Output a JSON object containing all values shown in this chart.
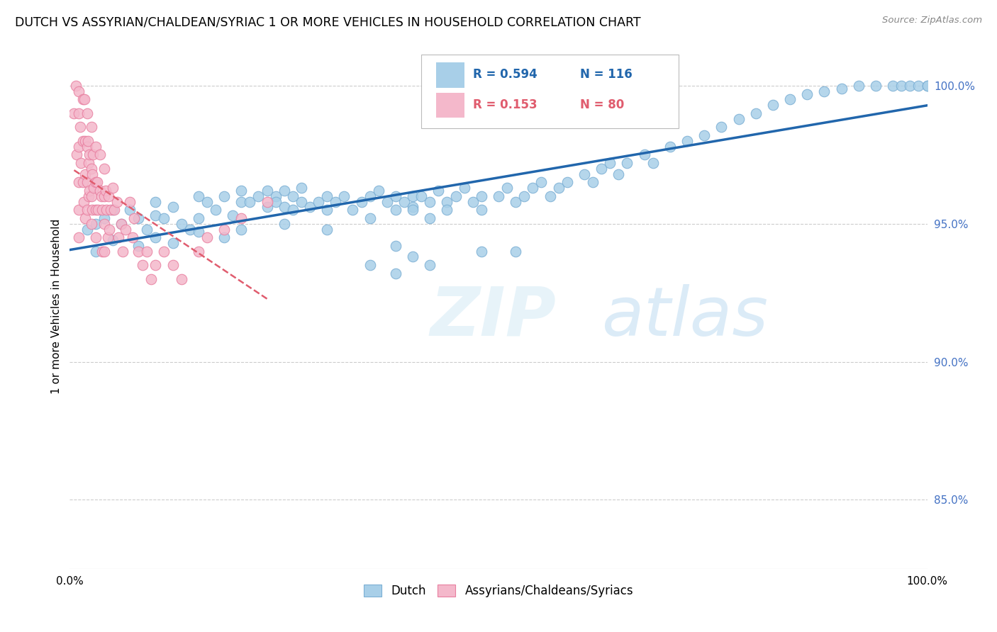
{
  "title": "DUTCH VS ASSYRIAN/CHALDEAN/SYRIAC 1 OR MORE VEHICLES IN HOUSEHOLD CORRELATION CHART",
  "source": "Source: ZipAtlas.com",
  "ylabel": "1 or more Vehicles in Household",
  "watermark": "ZIPatlas",
  "legend_labels": [
    "Dutch",
    "Assyrians/Chaldeans/Syriacs"
  ],
  "blue_color": "#a8cfe8",
  "pink_color": "#f4b8cb",
  "blue_edge_color": "#7bafd4",
  "pink_edge_color": "#e87fa0",
  "blue_line_color": "#2166ac",
  "pink_line_color": "#e05c6e",
  "r_blue": 0.594,
  "n_blue": 116,
  "r_pink": 0.153,
  "n_pink": 80,
  "xlim": [
    0.0,
    1.0
  ],
  "ylim": [
    0.825,
    1.015
  ],
  "ytick_labels_right": [
    "85.0%",
    "90.0%",
    "95.0%",
    "100.0%"
  ],
  "ytick_positions_right": [
    0.85,
    0.9,
    0.95,
    1.0
  ],
  "blue_scatter_x": [
    0.02,
    0.03,
    0.04,
    0.05,
    0.06,
    0.07,
    0.08,
    0.09,
    0.1,
    0.1,
    0.11,
    0.12,
    0.13,
    0.14,
    0.15,
    0.15,
    0.16,
    0.17,
    0.18,
    0.19,
    0.2,
    0.2,
    0.21,
    0.22,
    0.23,
    0.23,
    0.24,
    0.24,
    0.25,
    0.25,
    0.26,
    0.26,
    0.27,
    0.27,
    0.28,
    0.29,
    0.3,
    0.3,
    0.31,
    0.32,
    0.33,
    0.34,
    0.35,
    0.36,
    0.37,
    0.38,
    0.38,
    0.39,
    0.4,
    0.4,
    0.41,
    0.42,
    0.43,
    0.44,
    0.45,
    0.46,
    0.47,
    0.48,
    0.48,
    0.5,
    0.51,
    0.52,
    0.53,
    0.54,
    0.55,
    0.56,
    0.57,
    0.58,
    0.6,
    0.61,
    0.62,
    0.63,
    0.64,
    0.65,
    0.67,
    0.68,
    0.7,
    0.72,
    0.74,
    0.76,
    0.78,
    0.8,
    0.82,
    0.84,
    0.86,
    0.88,
    0.9,
    0.92,
    0.94,
    0.96,
    0.97,
    0.98,
    0.99,
    1.0,
    1.0,
    0.03,
    0.05,
    0.08,
    0.1,
    0.12,
    0.15,
    0.18,
    0.2,
    0.25,
    0.3,
    0.35,
    0.4,
    0.38,
    0.42,
    0.44,
    0.35,
    0.4,
    0.38,
    0.48,
    0.42,
    0.52
  ],
  "blue_scatter_y": [
    0.948,
    0.95,
    0.952,
    0.955,
    0.95,
    0.955,
    0.952,
    0.948,
    0.953,
    0.958,
    0.952,
    0.956,
    0.95,
    0.948,
    0.952,
    0.96,
    0.958,
    0.955,
    0.96,
    0.953,
    0.958,
    0.962,
    0.958,
    0.96,
    0.962,
    0.956,
    0.96,
    0.958,
    0.962,
    0.956,
    0.96,
    0.955,
    0.958,
    0.963,
    0.956,
    0.958,
    0.96,
    0.955,
    0.958,
    0.96,
    0.955,
    0.958,
    0.96,
    0.962,
    0.958,
    0.96,
    0.955,
    0.958,
    0.96,
    0.956,
    0.96,
    0.958,
    0.962,
    0.958,
    0.96,
    0.963,
    0.958,
    0.96,
    0.955,
    0.96,
    0.963,
    0.958,
    0.96,
    0.963,
    0.965,
    0.96,
    0.963,
    0.965,
    0.968,
    0.965,
    0.97,
    0.972,
    0.968,
    0.972,
    0.975,
    0.972,
    0.978,
    0.98,
    0.982,
    0.985,
    0.988,
    0.99,
    0.993,
    0.995,
    0.997,
    0.998,
    0.999,
    1.0,
    1.0,
    1.0,
    1.0,
    1.0,
    1.0,
    1.0,
    1.0,
    0.94,
    0.944,
    0.942,
    0.945,
    0.943,
    0.947,
    0.945,
    0.948,
    0.95,
    0.948,
    0.952,
    0.955,
    0.942,
    0.952,
    0.955,
    0.935,
    0.938,
    0.932,
    0.94,
    0.935,
    0.94
  ],
  "pink_scatter_x": [
    0.005,
    0.007,
    0.008,
    0.01,
    0.01,
    0.01,
    0.01,
    0.01,
    0.01,
    0.012,
    0.013,
    0.015,
    0.015,
    0.015,
    0.016,
    0.017,
    0.018,
    0.018,
    0.018,
    0.02,
    0.02,
    0.02,
    0.02,
    0.021,
    0.022,
    0.022,
    0.023,
    0.023,
    0.025,
    0.025,
    0.025,
    0.025,
    0.026,
    0.026,
    0.027,
    0.028,
    0.03,
    0.03,
    0.03,
    0.03,
    0.032,
    0.033,
    0.035,
    0.035,
    0.037,
    0.038,
    0.038,
    0.04,
    0.04,
    0.04,
    0.04,
    0.042,
    0.043,
    0.044,
    0.045,
    0.046,
    0.048,
    0.05,
    0.052,
    0.055,
    0.057,
    0.06,
    0.062,
    0.065,
    0.07,
    0.073,
    0.075,
    0.08,
    0.085,
    0.09,
    0.095,
    0.1,
    0.11,
    0.12,
    0.13,
    0.15,
    0.16,
    0.18,
    0.2,
    0.23
  ],
  "pink_scatter_y": [
    0.99,
    1.0,
    0.975,
    0.998,
    0.99,
    0.978,
    0.965,
    0.955,
    0.945,
    0.985,
    0.972,
    0.995,
    0.98,
    0.965,
    0.958,
    0.995,
    0.98,
    0.968,
    0.952,
    0.99,
    0.978,
    0.965,
    0.955,
    0.98,
    0.972,
    0.96,
    0.975,
    0.962,
    0.985,
    0.97,
    0.96,
    0.95,
    0.968,
    0.955,
    0.975,
    0.963,
    0.978,
    0.965,
    0.955,
    0.945,
    0.965,
    0.955,
    0.975,
    0.962,
    0.96,
    0.955,
    0.94,
    0.97,
    0.96,
    0.95,
    0.94,
    0.962,
    0.955,
    0.945,
    0.96,
    0.948,
    0.955,
    0.963,
    0.955,
    0.958,
    0.945,
    0.95,
    0.94,
    0.948,
    0.958,
    0.945,
    0.952,
    0.94,
    0.935,
    0.94,
    0.93,
    0.935,
    0.94,
    0.935,
    0.93,
    0.94,
    0.945,
    0.948,
    0.952,
    0.958
  ]
}
